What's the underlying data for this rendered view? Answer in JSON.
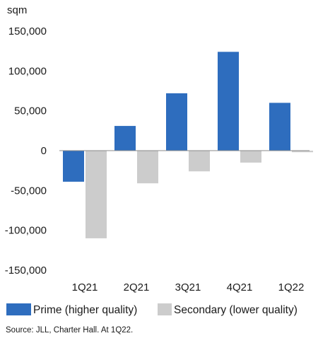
{
  "chart_data": {
    "type": "bar",
    "unit_label": "sqm",
    "categories": [
      "1Q21",
      "2Q21",
      "3Q21",
      "4Q21",
      "1Q22"
    ],
    "series": [
      {
        "name": "Prime (higher quality)",
        "color": "#2E6DBE",
        "values": [
          -39000,
          31000,
          72000,
          124000,
          60000
        ]
      },
      {
        "name": "Secondary (lower quality)",
        "color": "#CCCCCC",
        "values": [
          -110000,
          -41000,
          -26000,
          -15000,
          -2000
        ]
      }
    ],
    "ylim": [
      -150000,
      150000
    ],
    "y_ticks": [
      {
        "value": 150000,
        "label": "150,000"
      },
      {
        "value": 100000,
        "label": "100,000"
      },
      {
        "value": 50000,
        "label": "50,000"
      },
      {
        "value": 0,
        "label": "0"
      },
      {
        "value": -50000,
        "label": "-50,000"
      },
      {
        "value": -100000,
        "label": "-100,000"
      },
      {
        "value": -150000,
        "label": "-150,000"
      }
    ],
    "grid": false,
    "legend_position": "bottom",
    "source": "Source: JLL, Charter Hall. At 1Q22."
  }
}
